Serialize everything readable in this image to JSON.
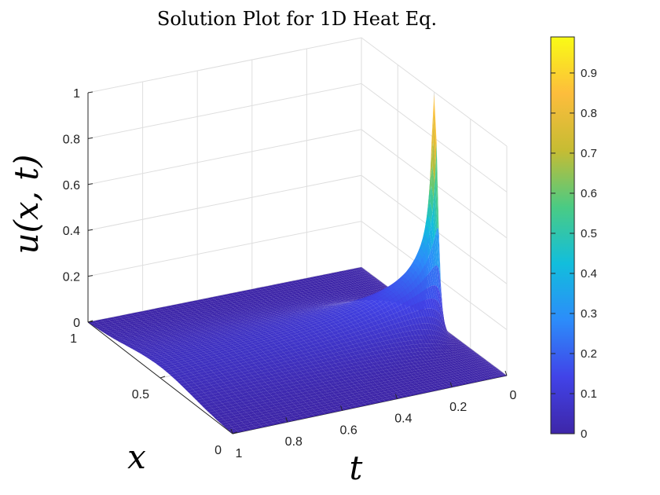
{
  "chart_data": {
    "type": "surface3d",
    "title": "Solution Plot for 1D Heat Eq.",
    "xlabel": "t",
    "ylabel": "x",
    "zlabel": "u(x, t)",
    "t_range": [
      0,
      1
    ],
    "x_range": [
      0,
      1
    ],
    "z_range": [
      0,
      1
    ],
    "t_ticks": [
      "0",
      "0.2",
      "0.4",
      "0.6",
      "0.8",
      "1"
    ],
    "x_ticks": [
      "0",
      "0.5",
      "1"
    ],
    "z_ticks": [
      "0",
      "0.2",
      "0.4",
      "0.6",
      "0.8",
      "1"
    ],
    "colorbar_ticks": [
      "0",
      "0.1",
      "0.2",
      "0.3",
      "0.4",
      "0.5",
      "0.6",
      "0.7",
      "0.8",
      "0.9"
    ],
    "colorbar_range": [
      0,
      0.99
    ],
    "colormap": "parula",
    "peak": {
      "x": 0.5,
      "t": 0,
      "u": 0.99
    },
    "grid": true,
    "colors": {
      "colormap_stops": [
        "#3e26a8",
        "#4143e8",
        "#2c8cfa",
        "#12bedc",
        "#4acb84",
        "#c6bc33",
        "#fdbd3c",
        "#f9fb15"
      ]
    }
  }
}
